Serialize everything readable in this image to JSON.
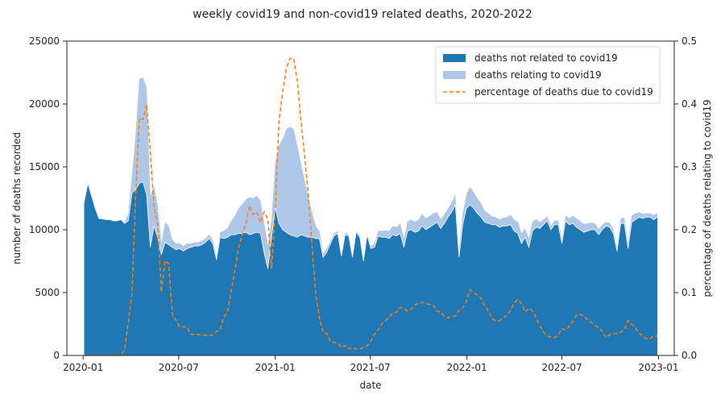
{
  "chart_data": {
    "type": "area",
    "title": "weekly covid19 and non-covid19 related deaths, 2020-2022",
    "xlabel": "date",
    "ylabel_left": "number of deaths recorded",
    "ylabel_right": "percentage of deaths relating to covid19",
    "ylim_left": [
      0,
      25000
    ],
    "ylim_right": [
      0,
      0.5
    ],
    "xlim": [
      "2019-12-01",
      "2023-01-31"
    ],
    "x_ticks": [
      "2020-01",
      "2020-07",
      "2021-01",
      "2021-07",
      "2022-01",
      "2022-07",
      "2023-01"
    ],
    "x_tick_dates": [
      "2020-01-01",
      "2020-07-01",
      "2021-01-01",
      "2021-07-01",
      "2022-01-01",
      "2022-07-01",
      "2023-01-01"
    ],
    "y_ticks_left": [
      "0",
      "5000",
      "10000",
      "15000",
      "20000",
      "25000"
    ],
    "y_ticks_right": [
      "0.0",
      "0.1",
      "0.2",
      "0.3",
      "0.4",
      "0.5"
    ],
    "legend_position": "top-right",
    "grid": false,
    "colors": {
      "non_covid": "#1f77b4",
      "covid": "#aec7e8",
      "percentage": "#ff7f0e"
    },
    "series": [
      {
        "name": "deaths not related to covid19",
        "type": "stacked-area"
      },
      {
        "name": "deaths relating to covid19",
        "type": "stacked-area"
      },
      {
        "name": "percentage of deaths due to covid19",
        "type": "dashed-line",
        "axis": "right"
      }
    ],
    "x": [
      "2020-01-03",
      "2020-01-10",
      "2020-01-17",
      "2020-01-24",
      "2020-01-31",
      "2020-02-07",
      "2020-02-14",
      "2020-02-21",
      "2020-02-28",
      "2020-03-06",
      "2020-03-13",
      "2020-03-20",
      "2020-03-27",
      "2020-04-03",
      "2020-04-10",
      "2020-04-17",
      "2020-04-24",
      "2020-05-01",
      "2020-05-08",
      "2020-05-15",
      "2020-05-22",
      "2020-05-29",
      "2020-06-05",
      "2020-06-12",
      "2020-06-19",
      "2020-06-26",
      "2020-07-03",
      "2020-07-10",
      "2020-07-17",
      "2020-07-24",
      "2020-07-31",
      "2020-08-07",
      "2020-08-14",
      "2020-08-21",
      "2020-08-28",
      "2020-09-04",
      "2020-09-11",
      "2020-09-18",
      "2020-09-25",
      "2020-10-02",
      "2020-10-09",
      "2020-10-16",
      "2020-10-23",
      "2020-10-30",
      "2020-11-06",
      "2020-11-13",
      "2020-11-20",
      "2020-11-27",
      "2020-12-04",
      "2020-12-11",
      "2020-12-18",
      "2020-12-25",
      "2021-01-01",
      "2021-01-08",
      "2021-01-15",
      "2021-01-22",
      "2021-01-29",
      "2021-02-05",
      "2021-02-12",
      "2021-02-19",
      "2021-02-26",
      "2021-03-05",
      "2021-03-12",
      "2021-03-19",
      "2021-03-26",
      "2021-04-02",
      "2021-04-09",
      "2021-04-16",
      "2021-04-23",
      "2021-04-30",
      "2021-05-07",
      "2021-05-14",
      "2021-05-21",
      "2021-05-28",
      "2021-06-04",
      "2021-06-11",
      "2021-06-18",
      "2021-06-25",
      "2021-07-02",
      "2021-07-09",
      "2021-07-16",
      "2021-07-23",
      "2021-07-30",
      "2021-08-06",
      "2021-08-13",
      "2021-08-20",
      "2021-08-27",
      "2021-09-03",
      "2021-09-10",
      "2021-09-17",
      "2021-09-24",
      "2021-10-01",
      "2021-10-08",
      "2021-10-15",
      "2021-10-22",
      "2021-10-29",
      "2021-11-05",
      "2021-11-12",
      "2021-11-19",
      "2021-11-26",
      "2021-12-03",
      "2021-12-10",
      "2021-12-17",
      "2021-12-24",
      "2021-12-31",
      "2022-01-07",
      "2022-01-14",
      "2022-01-21",
      "2022-01-28",
      "2022-02-04",
      "2022-02-11",
      "2022-02-18",
      "2022-02-25",
      "2022-03-04",
      "2022-03-11",
      "2022-03-18",
      "2022-03-25",
      "2022-04-01",
      "2022-04-08",
      "2022-04-15",
      "2022-04-22",
      "2022-04-29",
      "2022-05-06",
      "2022-05-13",
      "2022-05-20",
      "2022-05-27",
      "2022-06-03",
      "2022-06-10",
      "2022-06-17",
      "2022-06-24",
      "2022-07-01",
      "2022-07-08",
      "2022-07-15",
      "2022-07-22",
      "2022-07-29",
      "2022-08-05",
      "2022-08-12",
      "2022-08-19",
      "2022-08-26",
      "2022-09-02",
      "2022-09-09",
      "2022-09-16",
      "2022-09-23",
      "2022-09-30",
      "2022-10-07",
      "2022-10-14",
      "2022-10-21",
      "2022-10-28",
      "2022-11-04",
      "2022-11-11",
      "2022-11-18",
      "2022-11-25",
      "2022-12-02",
      "2022-12-09",
      "2022-12-16",
      "2022-12-23",
      "2022-12-30"
    ],
    "non_covid": [
      12200,
      13700,
      12700,
      11700,
      10900,
      10850,
      10800,
      10800,
      10700,
      10700,
      10800,
      10500,
      10700,
      12900,
      13200,
      13700,
      13800,
      12800,
      8600,
      10300,
      9400,
      8000,
      9000,
      8800,
      8600,
      8400,
      8500,
      8300,
      8500,
      8600,
      8700,
      8700,
      8800,
      9000,
      9300,
      8900,
      7600,
      9400,
      9300,
      9400,
      9600,
      9600,
      9700,
      9700,
      9800,
      9600,
      9700,
      9800,
      9700,
      8100,
      6900,
      9400,
      11800,
      10500,
      10000,
      9800,
      9600,
      9500,
      9400,
      9600,
      9500,
      9400,
      9400,
      9300,
      9300,
      7800,
      8200,
      8900,
      9500,
      9700,
      7900,
      9600,
      9500,
      7800,
      9800,
      9400,
      7500,
      9600,
      8500,
      8600,
      9500,
      9400,
      9400,
      9300,
      9600,
      9500,
      9700,
      8600,
      9900,
      10000,
      9800,
      9900,
      10300,
      10000,
      10200,
      10400,
      10600,
      10100,
      10500,
      11000,
      11400,
      12000,
      7800,
      10400,
      11700,
      12000,
      11700,
      11300,
      11000,
      10600,
      10500,
      10400,
      10400,
      10200,
      10300,
      10300,
      10400,
      9900,
      9700,
      8900,
      9400,
      8600,
      9900,
      10200,
      10100,
      10400,
      10700,
      10000,
      10400,
      10400,
      8900,
      10700,
      10400,
      10500,
      10200,
      10000,
      9800,
      9900,
      10000,
      10000,
      9600,
      10000,
      10300,
      10200,
      9700,
      8300,
      10500,
      10500,
      8500,
      10600,
      10800,
      11000,
      10900,
      11000,
      11000,
      10800,
      11000,
      11200,
      11500,
      12300,
      8800
    ],
    "covid": [
      0,
      0,
      0,
      0,
      0,
      0,
      0,
      0,
      0,
      0,
      0,
      100,
      600,
      1400,
      4400,
      8300,
      8300,
      8500,
      4100,
      3200,
      2500,
      900,
      1600,
      1500,
      600,
      500,
      400,
      400,
      400,
      300,
      300,
      300,
      300,
      300,
      300,
      300,
      300,
      400,
      600,
      700,
      1100,
      1500,
      2000,
      2300,
      2600,
      3000,
      2800,
      2900,
      2600,
      2400,
      1900,
      1500,
      3600,
      6200,
      7200,
      8200,
      8600,
      8500,
      7300,
      5700,
      4400,
      3200,
      2000,
      1000,
      600,
      300,
      300,
      200,
      200,
      200,
      100,
      150,
      100,
      100,
      100,
      100,
      100,
      150,
      200,
      300,
      400,
      500,
      550,
      600,
      700,
      700,
      800,
      700,
      750,
      800,
      850,
      900,
      950,
      900,
      900,
      900,
      800,
      750,
      700,
      700,
      750,
      800,
      600,
      850,
      1100,
      1400,
      1300,
      1200,
      1100,
      900,
      800,
      650,
      600,
      600,
      650,
      700,
      800,
      900,
      950,
      800,
      700,
      700,
      750,
      650,
      500,
      400,
      350,
      300,
      300,
      350,
      400,
      450,
      500,
      600,
      700,
      700,
      650,
      600,
      550,
      500,
      450,
      400,
      300,
      350,
      350,
      300,
      400,
      450,
      500,
      550,
      500,
      400,
      350,
      300,
      300,
      350,
      350,
      500
    ]
  }
}
